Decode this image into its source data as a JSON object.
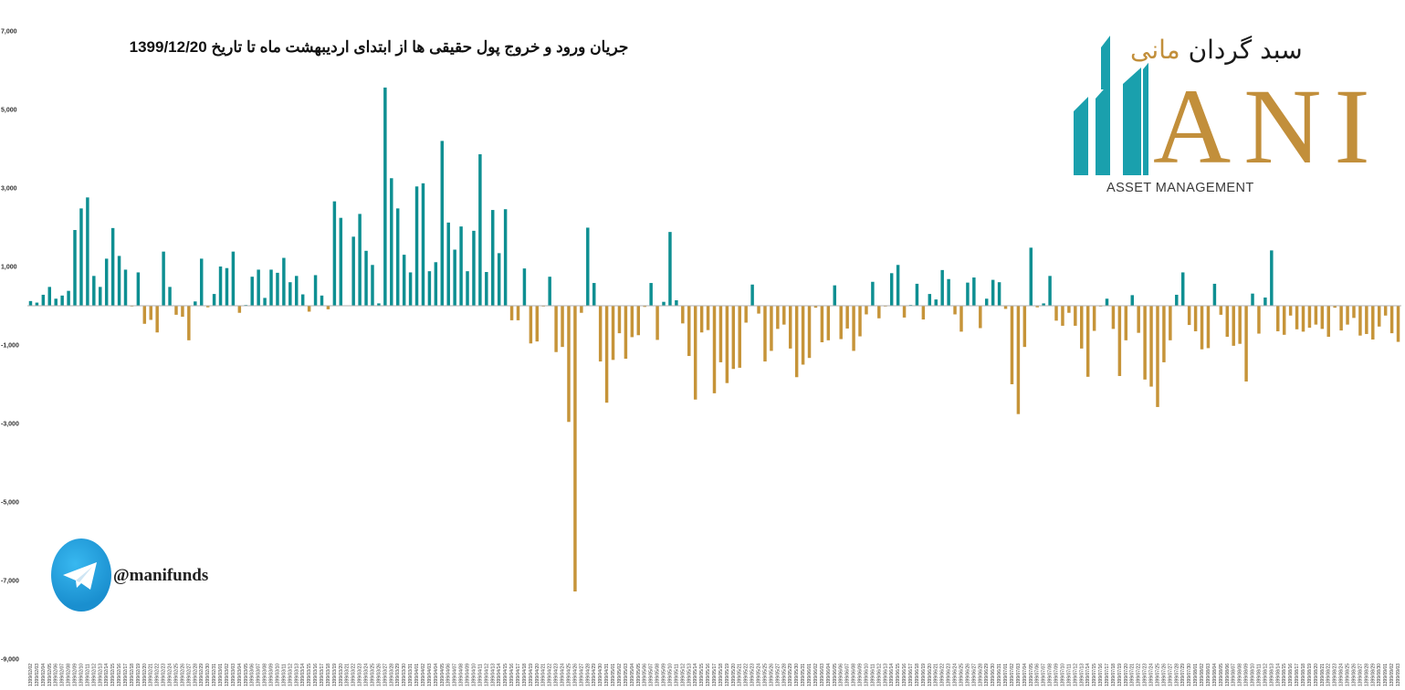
{
  "title": "جریان ورود و خروج پول حقیقی ها از ابتدای اردیبهشت ماه تا تاریخ 1399/12/20",
  "logo": {
    "persian_text": "سبد گردان مانی",
    "persian_main": "سبد گردان ",
    "persian_accent": "مانی",
    "mark": "ANI",
    "subtitle": "ASSET MANAGEMENT"
  },
  "social": {
    "handle": "@manifunds",
    "icon": "telegram-icon"
  },
  "colors": {
    "inflow": "#0e8f92",
    "outflow": "#c69439",
    "logo_teal": "#1aa0ad",
    "logo_gold": "#c28f3b"
  },
  "chart_data": {
    "type": "bar",
    "title": "جریان ورود و خروج پول حقیقی ها از ابتدای اردیبهشت ماه تا تاریخ 1399/12/20",
    "xlabel": "",
    "ylabel": "",
    "ylim": [
      -9000,
      7000
    ],
    "yticks": [
      7000,
      5000,
      3000,
      1000,
      -1000,
      -3000,
      -5000,
      -7000,
      -9000
    ],
    "ytick_labels": [
      "7,000",
      "5,000",
      "3,000",
      "1,000",
      "-1,000",
      "-3,000",
      "-5,000",
      "-7,000",
      "-9,000"
    ],
    "grid": false,
    "legend": "none",
    "x_start": "1399/02/02",
    "x_end": "1399/12/20",
    "values": [
      120,
      80,
      280,
      480,
      180,
      260,
      380,
      1930,
      2480,
      2760,
      760,
      480,
      1200,
      1980,
      1270,
      920,
      -20,
      850,
      -460,
      -360,
      -680,
      1380,
      480,
      -230,
      -280,
      -880,
      110,
      1200,
      -40,
      300,
      1000,
      960,
      1380,
      -180,
      20,
      740,
      920,
      200,
      920,
      840,
      1220,
      600,
      760,
      290,
      -150,
      780,
      260,
      -90,
      2660,
      2240,
      10,
      1760,
      2340,
      1400,
      1040,
      60,
      5560,
      3250,
      2480,
      1300,
      850,
      3040,
      3120,
      880,
      1110,
      4200,
      2120,
      1430,
      2020,
      880,
      1910,
      3860,
      860,
      2440,
      1340,
      2460,
      -370,
      -370,
      950,
      -960,
      -910,
      -20,
      740,
      -1180,
      -1050,
      -2960,
      -7280,
      -180,
      1990,
      580,
      -1420,
      -2470,
      -1380,
      -700,
      -1350,
      -800,
      -750,
      -30,
      580,
      -870,
      100,
      1880,
      140,
      -450,
      -1280,
      -2390,
      -680,
      -620,
      -2230,
      -1440,
      -1970,
      -1610,
      -1580,
      -430,
      540,
      -200,
      -1420,
      -1150,
      -590,
      -480,
      -1090,
      -1820,
      -1500,
      -1330,
      -50,
      -930,
      -880,
      520,
      -850,
      -580,
      -1150,
      -780,
      -220,
      610,
      -320,
      -20,
      830,
      1040,
      -300,
      20,
      560,
      -350,
      300,
      160,
      910,
      680,
      -220,
      -660,
      590,
      720,
      -570,
      180,
      660,
      600,
      -80,
      -2000,
      -2760,
      -1050,
      1480,
      -40,
      60,
      760,
      -380,
      -510,
      -180,
      -510,
      -1090,
      -1810,
      -640,
      -20,
      180,
      -590,
      -1790,
      -880,
      270,
      -690,
      -1880,
      -2060,
      -2580,
      -1440,
      -880,
      280,
      850,
      -490,
      -650,
      -1110,
      -1080,
      560,
      -230,
      -790,
      -1020,
      -970,
      -1930,
      310,
      -710,
      210,
      1410,
      -650,
      -740,
      -250,
      -600,
      -660,
      -560,
      -480,
      -590,
      -790,
      -50,
      -630,
      -480,
      -310,
      -760,
      -720,
      -860,
      -530,
      -250,
      -700,
      -920
    ],
    "inflow_series": "positive values",
    "outflow_series": "negative values"
  }
}
